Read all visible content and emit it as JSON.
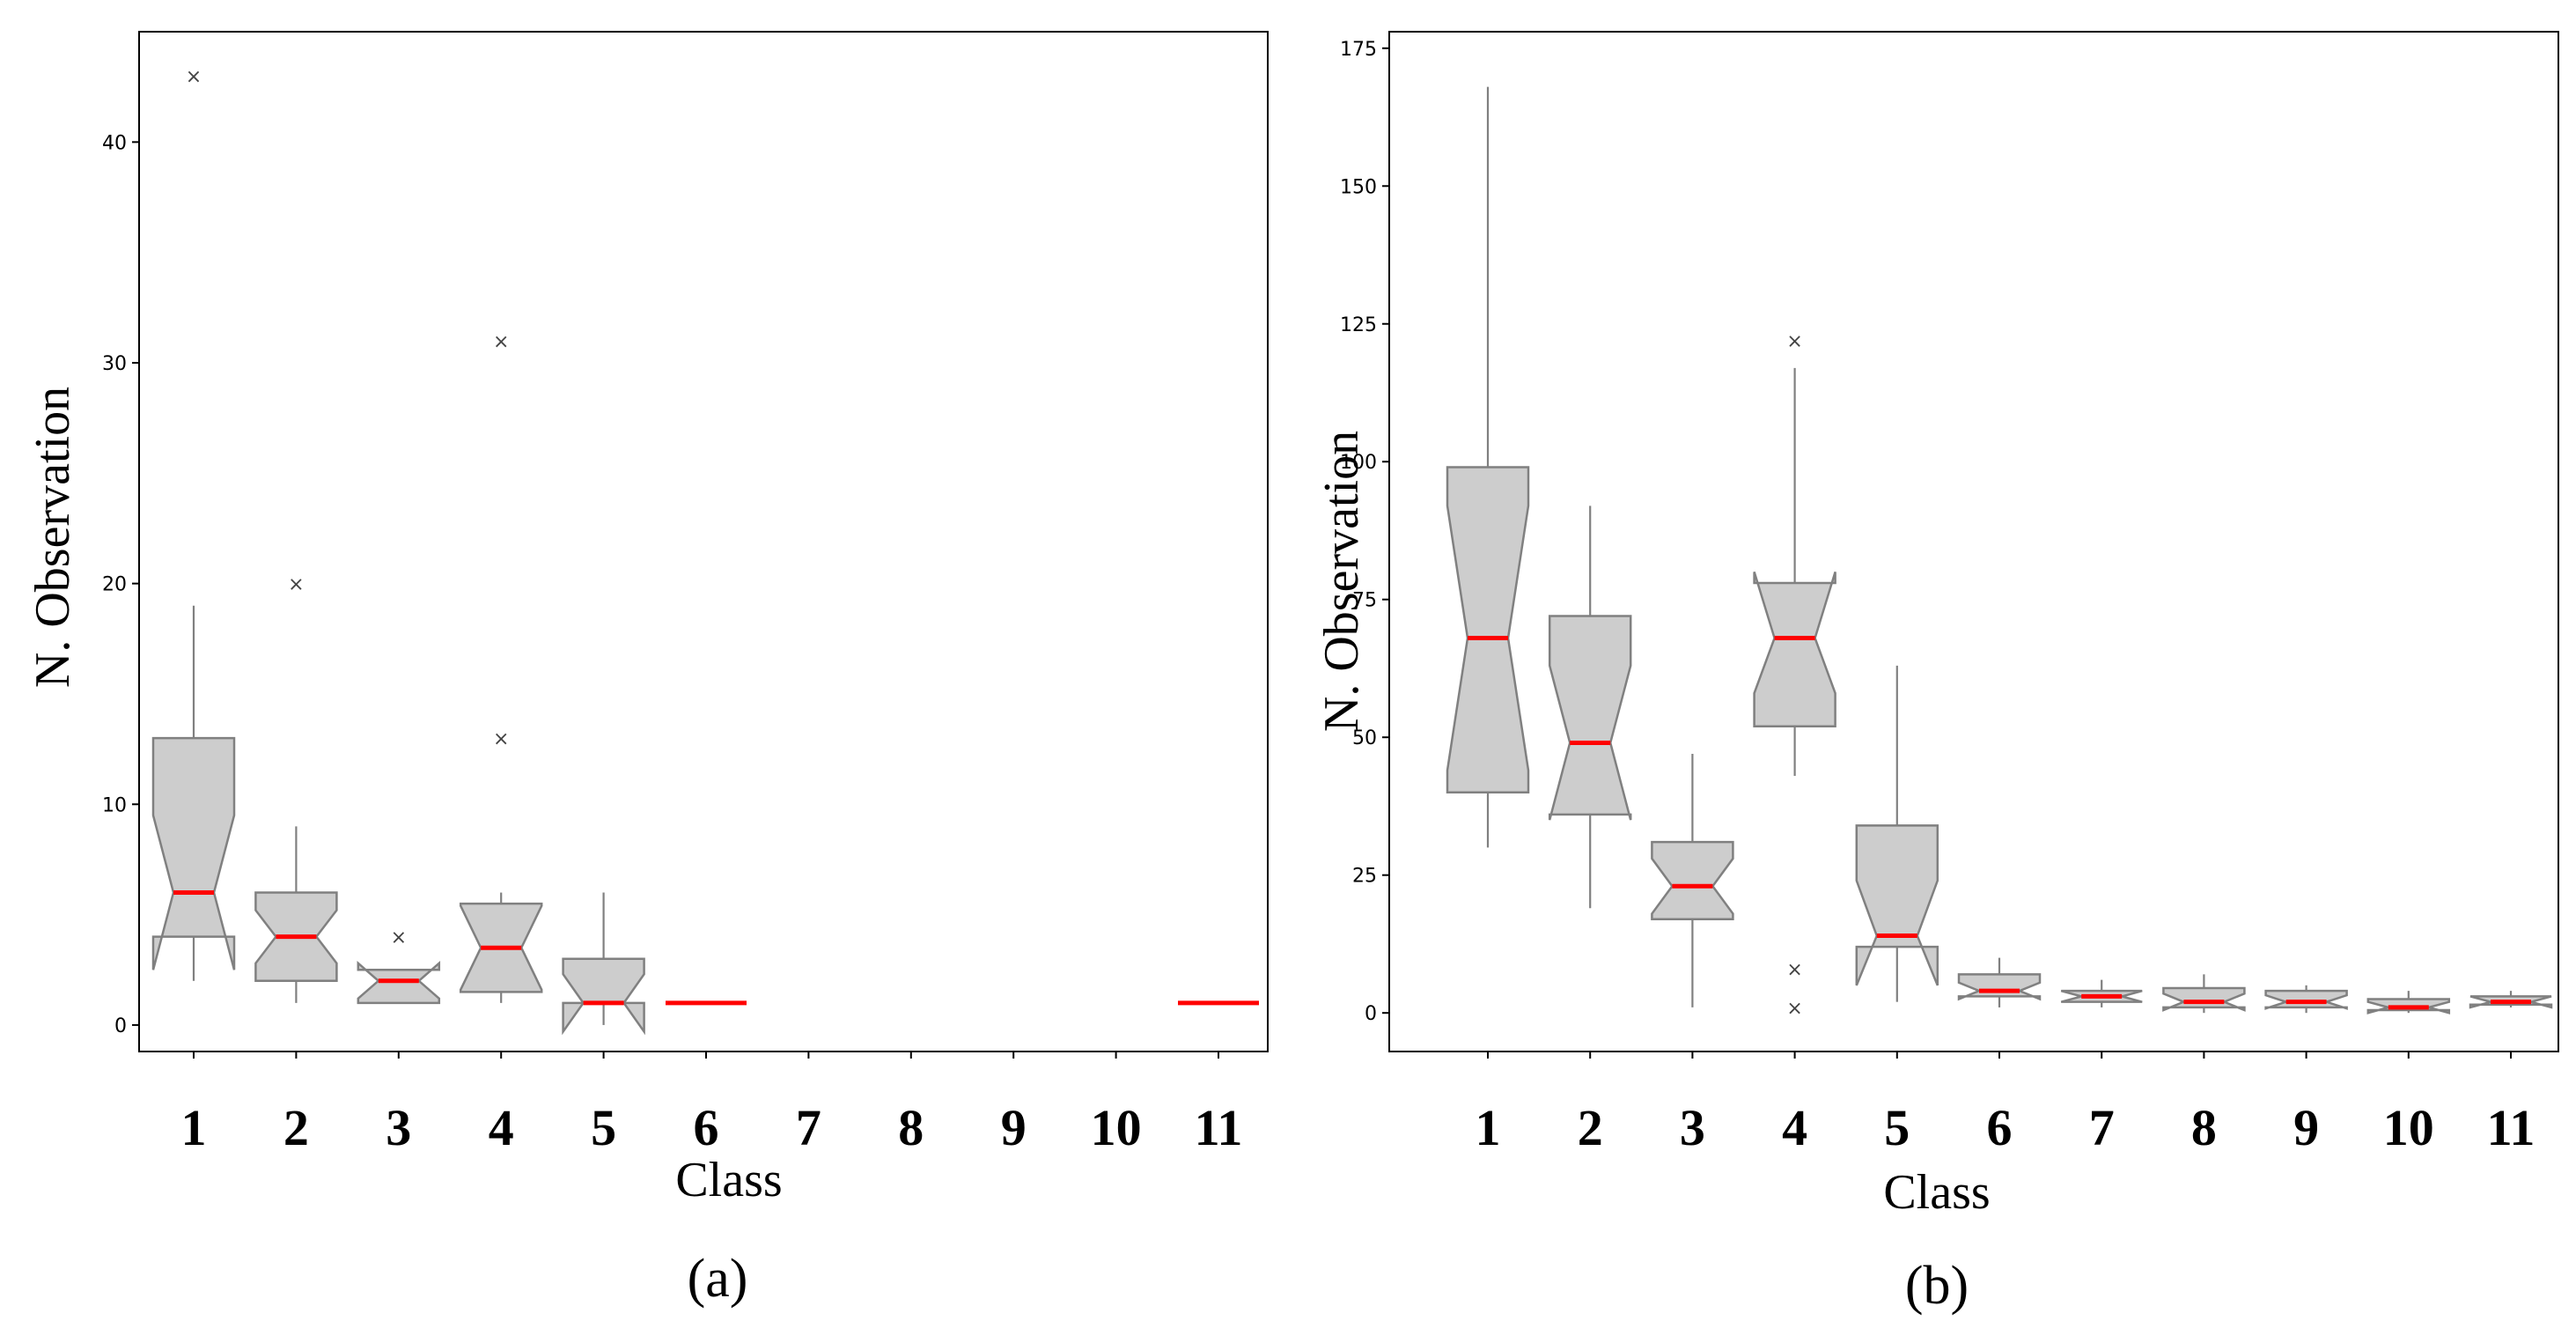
{
  "chart_data": [
    {
      "type": "boxplot",
      "panel_label": "(a)",
      "xlabel": "Class",
      "ylabel": "N. Observation",
      "ylim": [
        -1.2,
        45
      ],
      "yticks": [
        0,
        10,
        20,
        30,
        40
      ],
      "ytick_labels": [
        "0",
        "10",
        "20",
        "30",
        "40"
      ],
      "categories": [
        "1",
        "2",
        "3",
        "4",
        "5",
        "6",
        "7",
        "8",
        "9",
        "10",
        "11"
      ],
      "boxes": [
        {
          "cls": "1",
          "q1": 4,
          "median": 6,
          "q3": 13,
          "notch_lo": 2.5,
          "notch_hi": 9.5,
          "whislo": 2,
          "whishi": 19,
          "fliers": [
            43
          ]
        },
        {
          "cls": "2",
          "q1": 2,
          "median": 4,
          "q3": 6,
          "notch_lo": 2.8,
          "notch_hi": 5.2,
          "whislo": 1,
          "whishi": 9,
          "fliers": [
            20
          ]
        },
        {
          "cls": "3",
          "q1": 1,
          "median": 2,
          "q3": 2.5,
          "notch_lo": 1.2,
          "notch_hi": 2.8,
          "whislo": 1,
          "whishi": 2.5,
          "fliers": [
            4
          ]
        },
        {
          "cls": "4",
          "q1": 1.5,
          "median": 3.5,
          "q3": 5.5,
          "notch_lo": 1.6,
          "notch_hi": 5.4,
          "whislo": 1,
          "whishi": 6,
          "fliers": [
            13,
            31
          ]
        },
        {
          "cls": "5",
          "q1": 1,
          "median": 1,
          "q3": 3,
          "notch_lo": -0.3,
          "notch_hi": 2.3,
          "whislo": 0,
          "whishi": 6,
          "fliers": []
        },
        {
          "cls": "6",
          "q1": 1,
          "median": 1,
          "q3": 1,
          "notch_lo": 1,
          "notch_hi": 1,
          "whislo": 1,
          "whishi": 1,
          "fliers": []
        },
        {
          "cls": "11",
          "q1": 1,
          "median": 1,
          "q3": 1,
          "notch_lo": 1,
          "notch_hi": 1,
          "whislo": 1,
          "whishi": 1,
          "fliers": []
        }
      ]
    },
    {
      "type": "boxplot",
      "panel_label": "(b)",
      "xlabel": "Class",
      "ylabel": "N. Observation",
      "ylim": [
        -7,
        178
      ],
      "yticks": [
        0,
        25,
        50,
        75,
        100,
        125,
        150,
        175
      ],
      "ytick_labels": [
        "0",
        "25",
        "50",
        "75",
        "100",
        "125",
        "150",
        "175"
      ],
      "categories": [
        "1",
        "2",
        "3",
        "4",
        "5",
        "6",
        "7",
        "8",
        "9",
        "10",
        "11"
      ],
      "boxes": [
        {
          "cls": "1",
          "q1": 40,
          "median": 68,
          "q3": 99,
          "notch_lo": 44,
          "notch_hi": 92,
          "whislo": 30,
          "whishi": 168,
          "fliers": []
        },
        {
          "cls": "2",
          "q1": 36,
          "median": 49,
          "q3": 72,
          "notch_lo": 35,
          "notch_hi": 63,
          "whislo": 19,
          "whishi": 92,
          "fliers": []
        },
        {
          "cls": "3",
          "q1": 17,
          "median": 23,
          "q3": 31,
          "notch_lo": 18,
          "notch_hi": 28,
          "whislo": 1,
          "whishi": 47,
          "fliers": []
        },
        {
          "cls": "4",
          "q1": 52,
          "median": 68,
          "q3": 78,
          "notch_lo": 58,
          "notch_hi": 80,
          "whislo": 43,
          "whishi": 117,
          "fliers": [
            1,
            8,
            122
          ]
        },
        {
          "cls": "5",
          "q1": 12,
          "median": 14,
          "q3": 34,
          "notch_lo": 5,
          "notch_hi": 24,
          "whislo": 2,
          "whishi": 63,
          "fliers": []
        },
        {
          "cls": "6",
          "q1": 3,
          "median": 4,
          "q3": 7,
          "notch_lo": 2.5,
          "notch_hi": 5.5,
          "whislo": 1,
          "whishi": 10,
          "fliers": []
        },
        {
          "cls": "7",
          "q1": 2,
          "median": 3,
          "q3": 4,
          "notch_lo": 2,
          "notch_hi": 4,
          "whislo": 1,
          "whishi": 6,
          "fliers": []
        },
        {
          "cls": "8",
          "q1": 1,
          "median": 2,
          "q3": 4.5,
          "notch_lo": 0.5,
          "notch_hi": 3.5,
          "whislo": 0,
          "whishi": 7,
          "fliers": []
        },
        {
          "cls": "9",
          "q1": 1,
          "median": 2,
          "q3": 4,
          "notch_lo": 0.8,
          "notch_hi": 3.2,
          "whislo": 0,
          "whishi": 5,
          "fliers": []
        },
        {
          "cls": "10",
          "q1": 0.5,
          "median": 1,
          "q3": 2.5,
          "notch_lo": 0,
          "notch_hi": 2,
          "whislo": 0,
          "whishi": 4,
          "fliers": []
        },
        {
          "cls": "11",
          "q1": 1.5,
          "median": 2,
          "q3": 3,
          "notch_lo": 1,
          "notch_hi": 3,
          "whislo": 1,
          "whishi": 4,
          "fliers": []
        }
      ]
    }
  ],
  "colors": {
    "box_fill": "#cdcdcd",
    "box_edge": "#808080",
    "median": "#ff0000",
    "flier": "#444444"
  },
  "flier_glyph": "×"
}
